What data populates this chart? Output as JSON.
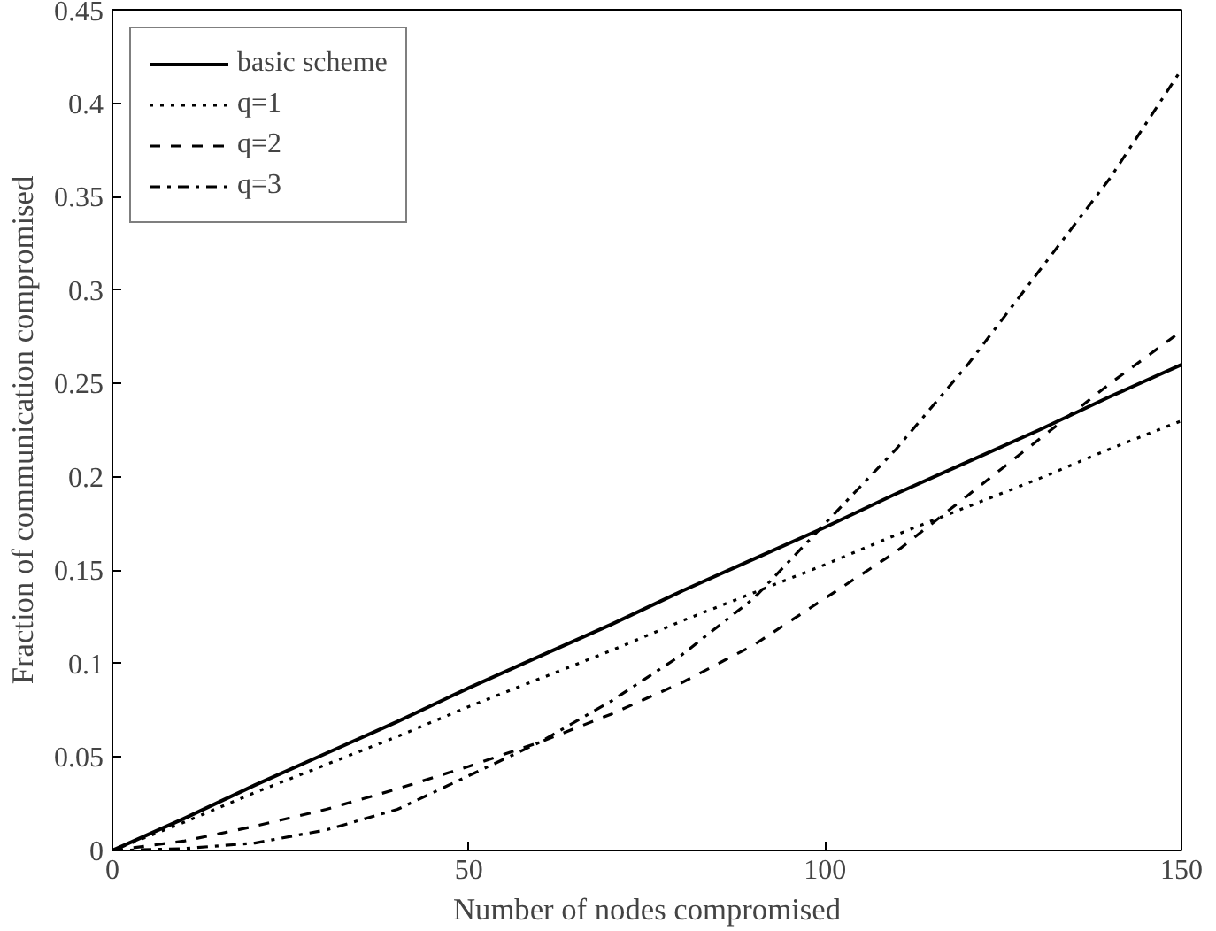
{
  "chart_data": {
    "type": "line",
    "xlabel": "Number of nodes compromised",
    "ylabel": "Fraction of communication compromised",
    "x": [
      0,
      10,
      20,
      30,
      40,
      50,
      60,
      70,
      80,
      90,
      100,
      110,
      120,
      130,
      140,
      150
    ],
    "xlim": [
      0,
      150
    ],
    "xticks": [
      0,
      50,
      100,
      150
    ],
    "ylim": [
      0,
      0.45
    ],
    "yticks": [
      0,
      0.05,
      0.1,
      0.15,
      0.2,
      0.25,
      0.3,
      0.35,
      0.4,
      0.45
    ],
    "grid": false,
    "legend": "top left",
    "marker": "none",
    "series": [
      {
        "name": "basic scheme",
        "color": "#000000",
        "line_style": "solid",
        "values": [
          0,
          0.017,
          0.035,
          0.052,
          0.069,
          0.087,
          0.104,
          0.121,
          0.139,
          0.156,
          0.173,
          0.191,
          0.208,
          0.225,
          0.243,
          0.26
        ]
      },
      {
        "name": "q=1",
        "color": "#000000",
        "line_style": "dotted",
        "values": [
          0,
          0.015,
          0.031,
          0.046,
          0.061,
          0.077,
          0.092,
          0.107,
          0.123,
          0.138,
          0.153,
          0.169,
          0.184,
          0.199,
          0.215,
          0.23
        ]
      },
      {
        "name": "q=2",
        "color": "#000000",
        "line_style": "dashed",
        "values": [
          0,
          0.005,
          0.013,
          0.022,
          0.033,
          0.045,
          0.058,
          0.073,
          0.09,
          0.11,
          0.135,
          0.16,
          0.19,
          0.22,
          0.25,
          0.278
        ]
      },
      {
        "name": "q=3",
        "color": "#000000",
        "line_style": "dashdot",
        "values": [
          0,
          0.001,
          0.004,
          0.011,
          0.022,
          0.04,
          0.058,
          0.08,
          0.105,
          0.135,
          0.175,
          0.215,
          0.26,
          0.31,
          0.36,
          0.418
        ]
      }
    ]
  }
}
